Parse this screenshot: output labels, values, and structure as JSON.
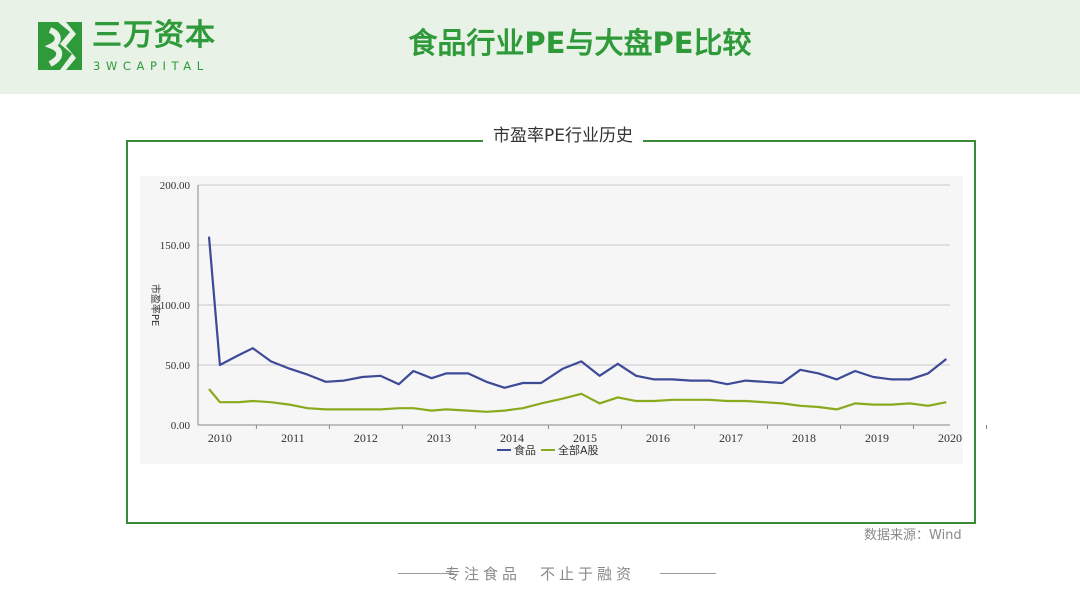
{
  "header": {
    "brand_cn": "三万资本",
    "brand_en": "3WCAPITAL",
    "page_title": "食品行业PE与大盘PE比较"
  },
  "colors": {
    "brand_green": "#2e9a3a",
    "series_food": "#3d4a96",
    "series_market": "#8aaa1e"
  },
  "chart_data": {
    "type": "line",
    "title": "市盈率PE行业历史",
    "xlabel": "",
    "ylabel": "市盈率PE",
    "xlim": [
      2009.7,
      2020.0
    ],
    "ylim": [
      0,
      200
    ],
    "yticks": [
      "0.00",
      "50.00",
      "100.00",
      "150.00",
      "200.00"
    ],
    "xticks": [
      "2010",
      "2011",
      "2012",
      "2013",
      "2014",
      "2015",
      "2016",
      "2017",
      "2018",
      "2019",
      "2020"
    ],
    "grid": true,
    "legend": "bottom-center",
    "x": [
      2009.85,
      2010.0,
      2010.25,
      2010.45,
      2010.7,
      2010.95,
      2011.2,
      2011.45,
      2011.7,
      2011.95,
      2012.2,
      2012.45,
      2012.65,
      2012.9,
      2013.1,
      2013.4,
      2013.65,
      2013.9,
      2014.15,
      2014.4,
      2014.7,
      2014.95,
      2015.2,
      2015.45,
      2015.7,
      2015.95,
      2016.2,
      2016.45,
      2016.7,
      2016.95,
      2017.2,
      2017.45,
      2017.7,
      2017.95,
      2018.2,
      2018.45,
      2018.7,
      2018.95,
      2019.2,
      2019.45,
      2019.7,
      2019.95,
      2020.2,
      2020.0
    ],
    "series": [
      {
        "name": "食品",
        "color": "#3d4a96",
        "x": [
          2009.85,
          2010.0,
          2010.25,
          2010.45,
          2010.7,
          2010.95,
          2011.2,
          2011.45,
          2011.7,
          2011.95,
          2012.2,
          2012.45,
          2012.65,
          2012.9,
          2013.1,
          2013.4,
          2013.65,
          2013.9,
          2014.15,
          2014.4,
          2014.7,
          2014.95,
          2015.2,
          2015.45,
          2015.7,
          2015.95,
          2016.2,
          2016.45,
          2016.7,
          2016.95,
          2017.2,
          2017.45,
          2017.7,
          2017.95,
          2018.2,
          2018.45,
          2018.7,
          2018.95,
          2019.2,
          2019.45,
          2019.7,
          2019.95
        ],
        "values": [
          157,
          50,
          58,
          64,
          53,
          47,
          42,
          36,
          37,
          40,
          41,
          34,
          45,
          39,
          43,
          43,
          36,
          31,
          35,
          35,
          47,
          53,
          41,
          51,
          41,
          38,
          38,
          37,
          37,
          34,
          37,
          36,
          35,
          46,
          43,
          38,
          45,
          40,
          38,
          38,
          43,
          55
        ]
      },
      {
        "name": "全部A股",
        "color": "#8aaa1e",
        "x": [
          2009.85,
          2010.0,
          2010.25,
          2010.45,
          2010.7,
          2010.95,
          2011.2,
          2011.45,
          2011.7,
          2011.95,
          2012.2,
          2012.45,
          2012.65,
          2012.9,
          2013.1,
          2013.4,
          2013.65,
          2013.9,
          2014.15,
          2014.4,
          2014.7,
          2014.95,
          2015.2,
          2015.45,
          2015.7,
          2015.95,
          2016.2,
          2016.45,
          2016.7,
          2016.95,
          2017.2,
          2017.45,
          2017.7,
          2017.95,
          2018.2,
          2018.45,
          2018.7,
          2018.95,
          2019.2,
          2019.45,
          2019.7,
          2019.95
        ],
        "values": [
          30,
          19,
          19,
          20,
          19,
          17,
          14,
          13,
          13,
          13,
          13,
          14,
          14,
          12,
          13,
          12,
          11,
          12,
          14,
          18,
          22,
          26,
          18,
          23,
          20,
          20,
          21,
          21,
          21,
          20,
          20,
          19,
          18,
          16,
          15,
          13,
          18,
          17,
          17,
          18,
          16,
          19
        ]
      }
    ]
  },
  "footer": {
    "source": "数据来源：Wind",
    "slogan": "专注食品　不止于融资"
  }
}
